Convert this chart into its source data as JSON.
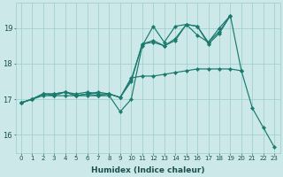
{
  "xlabel": "Humidex (Indice chaleur)",
  "bg_color": "#cce8e8",
  "grid_color": "#99cccc",
  "line_color": "#1a7a6e",
  "xlim": [
    -0.5,
    23.5
  ],
  "ylim": [
    15.5,
    19.7
  ],
  "yticks": [
    16,
    17,
    18,
    19
  ],
  "xticks": [
    0,
    1,
    2,
    3,
    4,
    5,
    6,
    7,
    8,
    9,
    10,
    11,
    12,
    13,
    14,
    15,
    16,
    17,
    18,
    19,
    20,
    21,
    22,
    23
  ],
  "series": [
    {
      "x": [
        0,
        1,
        2,
        3,
        4,
        5,
        6,
        7,
        8,
        9,
        10,
        11,
        12,
        13,
        14,
        15,
        16,
        17,
        18,
        19,
        20,
        21,
        22,
        23
      ],
      "y": [
        16.9,
        17.0,
        17.1,
        17.1,
        17.1,
        17.1,
        17.1,
        17.1,
        17.1,
        16.65,
        17.0,
        18.5,
        19.05,
        18.6,
        19.05,
        19.1,
        18.8,
        18.6,
        19.0,
        19.35,
        17.8,
        16.75,
        16.2,
        15.65
      ]
    },
    {
      "x": [
        0,
        1,
        2,
        3,
        4,
        5,
        6,
        7,
        8,
        9,
        10,
        11,
        12,
        13,
        14,
        15,
        16,
        17,
        18,
        19
      ],
      "y": [
        16.9,
        17.0,
        17.15,
        17.1,
        17.2,
        17.1,
        17.15,
        17.2,
        17.15,
        17.05,
        17.5,
        18.55,
        18.6,
        18.5,
        18.65,
        19.1,
        19.05,
        18.55,
        18.85,
        19.35
      ]
    },
    {
      "x": [
        0,
        1,
        2,
        3,
        4,
        5,
        6,
        7,
        8,
        9,
        10,
        11,
        12,
        13,
        14,
        15,
        16,
        17,
        18,
        19
      ],
      "y": [
        16.9,
        17.0,
        17.15,
        17.15,
        17.2,
        17.1,
        17.15,
        17.1,
        17.15,
        17.05,
        17.55,
        18.55,
        18.65,
        18.5,
        18.7,
        19.1,
        19.05,
        18.6,
        18.9,
        19.35
      ]
    },
    {
      "x": [
        0,
        1,
        2,
        3,
        4,
        5,
        6,
        7,
        8,
        9,
        10,
        11,
        12,
        13,
        14,
        15,
        16,
        17,
        18,
        19,
        20
      ],
      "y": [
        16.9,
        17.0,
        17.15,
        17.15,
        17.2,
        17.15,
        17.2,
        17.15,
        17.15,
        17.05,
        17.6,
        17.65,
        17.65,
        17.7,
        17.75,
        17.8,
        17.85,
        17.85,
        17.85,
        17.85,
        17.8
      ]
    }
  ]
}
